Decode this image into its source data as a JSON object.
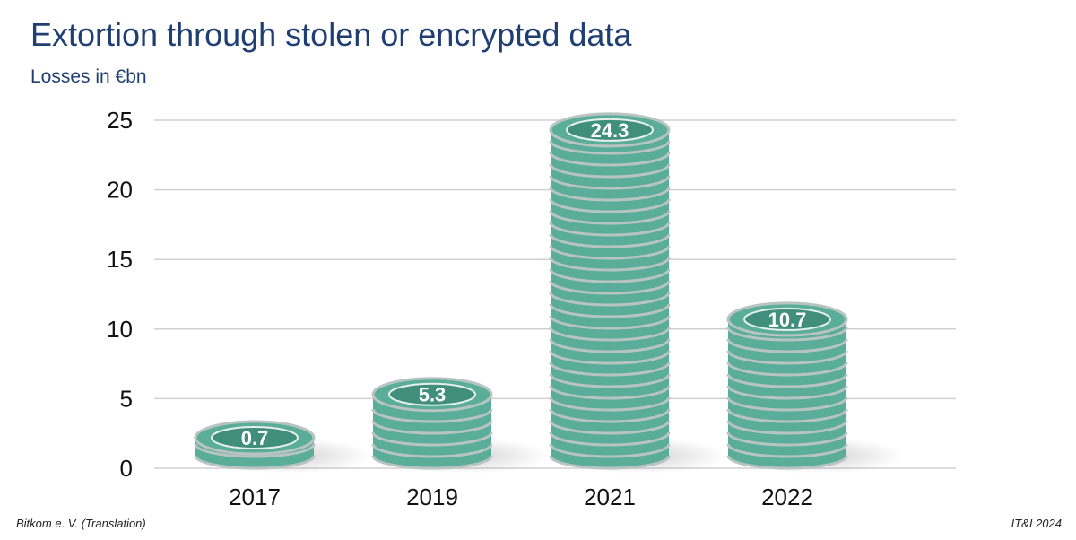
{
  "header": {
    "title": "Extortion through stolen or encrypted data",
    "subtitle": "Losses in €bn"
  },
  "footer": {
    "source": "Bitkom e. V. (Translation)",
    "credit": "IT&I 2024"
  },
  "colors": {
    "title": "#1f3f72",
    "coin": "#5aae99",
    "coin_dark": "#3f8f7c",
    "coin_edge": "#b7c4c1",
    "grid": "#d0d0d0"
  },
  "chart_data": {
    "type": "bar",
    "title": "Extortion through stolen or encrypted data",
    "subtitle": "Losses in €bn",
    "categories": [
      "2017",
      "2019",
      "2021",
      "2022"
    ],
    "values": [
      0.7,
      5.3,
      24.3,
      10.7
    ],
    "labels": [
      "0.7",
      "5.3",
      "24.3",
      "10.7"
    ],
    "ylim": [
      0,
      25
    ],
    "yticks": [
      "0",
      "5",
      "10",
      "15",
      "20",
      "25"
    ],
    "grid": true,
    "style": "coin stacks"
  }
}
